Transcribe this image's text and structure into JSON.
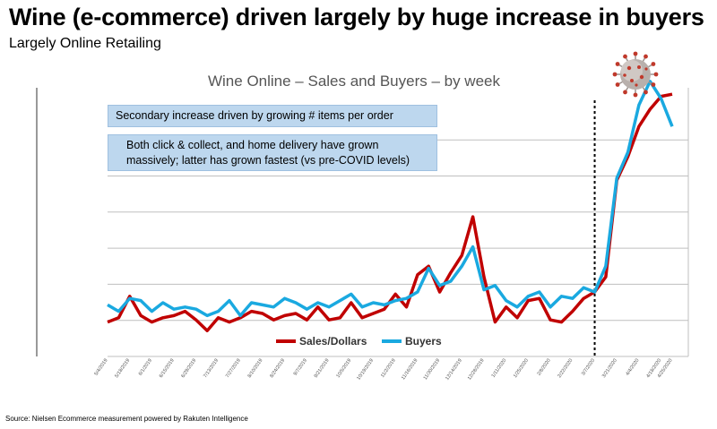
{
  "headline": "Wine (e-commerce) driven largely by huge increase in buyers",
  "subheadline": "Largely Online Retailing",
  "source": "Source: Nielsen Ecommerce measurement powered by Rakuten Intelligence",
  "callouts": {
    "first": "Secondary increase driven by growing # items per order",
    "second": "Both click & collect, and home delivery have grown massively; latter has grown fastest (vs pre-COVID levels)"
  },
  "icons": {
    "virus": "coronavirus-icon"
  },
  "colors": {
    "sales": "#c00000",
    "buyers": "#1aa9e0",
    "callout_bg": "#bdd7ee"
  },
  "chart_data": {
    "type": "line",
    "title": "Wine Online – Sales and Buyers – by week",
    "legend_position": "bottom",
    "grid": true,
    "y_axis_labels": false,
    "ylim": [
      0,
      110
    ],
    "x": [
      "5/4/2019",
      "5/11/2019",
      "5/18/2019",
      "5/25/2019",
      "6/1/2019",
      "6/8/2019",
      "6/15/2019",
      "6/22/2019",
      "6/29/2019",
      "7/6/2019",
      "7/13/2019",
      "7/20/2019",
      "7/27/2019",
      "8/3/2019",
      "8/10/2019",
      "8/17/2019",
      "8/24/2019",
      "8/31/2019",
      "9/7/2019",
      "9/14/2019",
      "9/21/2019",
      "9/28/2019",
      "10/5/2019",
      "10/12/2019",
      "10/19/2019",
      "10/26/2019",
      "11/2/2019",
      "11/9/2019",
      "11/16/2019",
      "11/23/2019",
      "11/30/2019",
      "12/7/2019",
      "12/14/2019",
      "12/21/2019",
      "12/28/2019",
      "1/4/2020",
      "1/11/2020",
      "1/18/2020",
      "1/25/2020",
      "2/1/2020",
      "2/8/2020",
      "2/15/2020",
      "2/22/2020",
      "2/29/2020",
      "3/7/2020",
      "3/14/2020",
      "3/21/2020",
      "3/28/2020",
      "4/4/2020",
      "4/11/2020",
      "4/18/2020",
      "4/25/2020"
    ],
    "x_tick_labels": [
      "5/4/2019",
      "5/18/2019",
      "6/1/2019",
      "6/15/2019",
      "6/29/2019",
      "7/13/2019",
      "7/27/2019",
      "8/10/2019",
      "8/24/2019",
      "9/7/2019",
      "9/21/2019",
      "10/5/2019",
      "10/19/2019",
      "11/2/2019",
      "11/16/2019",
      "11/30/2019",
      "12/14/2019",
      "12/28/2019",
      "1/11/2020",
      "1/25/2020",
      "2/8/2020",
      "2/22/2020",
      "3/7/2020",
      "3/21/2020",
      "4/4/2020",
      "4/18/2020",
      "4/25/2020"
    ],
    "annotation_line_at": "3/7/2020",
    "series": [
      {
        "name": "Sales/Dollars",
        "color": "#c00000",
        "values": [
          6,
          8,
          18,
          9,
          6,
          8,
          9,
          11,
          7,
          2,
          8,
          6,
          8,
          11,
          10,
          7,
          9,
          10,
          7,
          13,
          7,
          8,
          15,
          8,
          10,
          12,
          19,
          13,
          28,
          32,
          20,
          29,
          37,
          55,
          27,
          6,
          13,
          8,
          16,
          17,
          7,
          6,
          11,
          17,
          20,
          27,
          72,
          83,
          97,
          105,
          111,
          112
        ]
      },
      {
        "name": "Buyers",
        "color": "#1aa9e0",
        "values": [
          14,
          11,
          17,
          16,
          11,
          15,
          12,
          13,
          12,
          9,
          11,
          16,
          9,
          15,
          14,
          13,
          17,
          15,
          12,
          15,
          13,
          16,
          19,
          13,
          15,
          14,
          16,
          17,
          20,
          31,
          23,
          25,
          32,
          41,
          21,
          23,
          16,
          13,
          18,
          20,
          13,
          18,
          17,
          22,
          20,
          32,
          73,
          85,
          107,
          118,
          110,
          97
        ]
      }
    ]
  }
}
